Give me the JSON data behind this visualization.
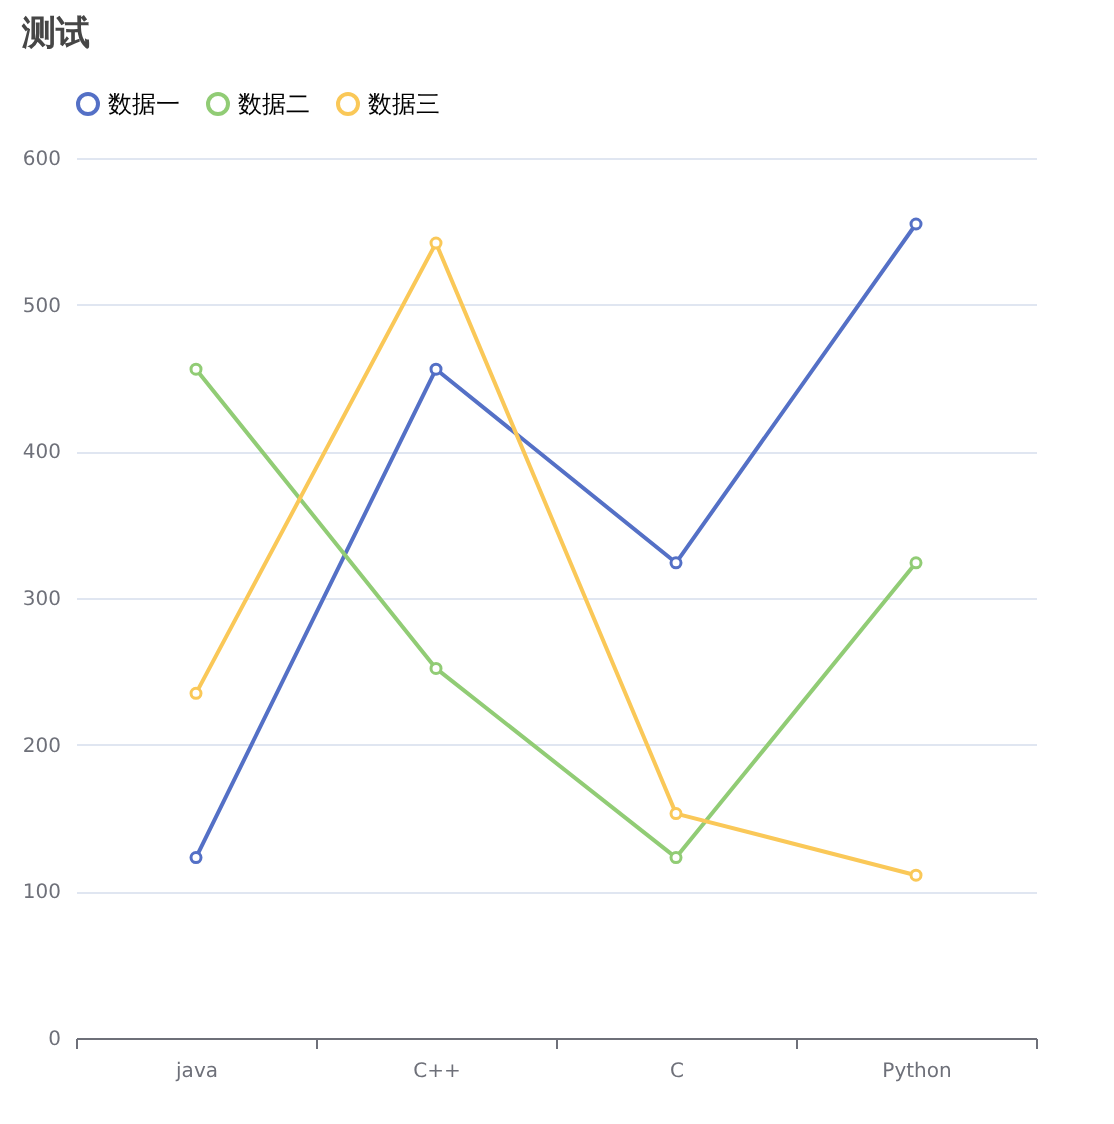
{
  "chart_data": {
    "type": "line",
    "title": "测试",
    "categories": [
      "java",
      "C++",
      "C",
      "Python"
    ],
    "series": [
      {
        "name": "数据一",
        "color": "#5470c6",
        "values": [
          123,
          456,
          324,
          555
        ]
      },
      {
        "name": "数据二",
        "color": "#91cc75",
        "values": [
          456,
          252,
          123,
          324
        ]
      },
      {
        "name": "数据三",
        "color": "#fac858",
        "values": [
          235,
          542,
          153,
          111
        ]
      }
    ],
    "ylim": [
      0,
      600
    ],
    "yticks": [
      0,
      100,
      200,
      300,
      400,
      500,
      600
    ],
    "grid": "y",
    "legend": "top",
    "marker": "circle",
    "line_style": "solid"
  }
}
